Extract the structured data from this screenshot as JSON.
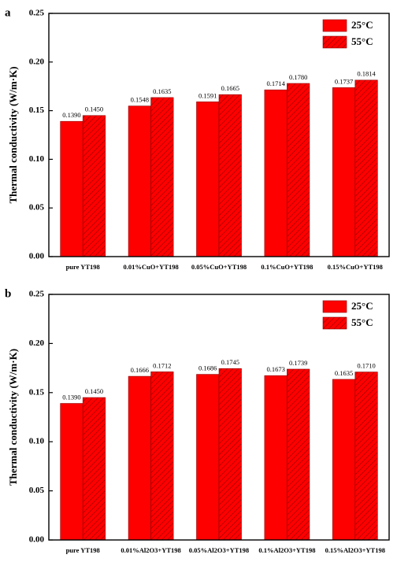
{
  "chart_data": [
    {
      "type": "bar",
      "panel_label": "a",
      "ylabel": "Thermal conductivity (W/m·K)",
      "categories": [
        "pure YT198",
        "0.01%CuO+YT198",
        "0.05%CuO+YT198",
        "0.1%CuO+YT198",
        "0.15%CuO+YT198"
      ],
      "series": [
        {
          "name": "25°C",
          "color": "#ff0000",
          "hatch": false,
          "values": [
            0.139,
            0.1548,
            0.1591,
            0.1714,
            0.1737
          ],
          "value_labels": [
            "0.1390",
            "0.1548",
            "0.1591",
            "0.1714",
            "0.1737"
          ]
        },
        {
          "name": "55°C",
          "color": "#ff0000",
          "hatch": true,
          "values": [
            0.145,
            0.1635,
            0.1665,
            0.178,
            0.1814
          ],
          "value_labels": [
            "0.1450",
            "0.1635",
            "0.1665",
            "0.1780",
            "0.1814"
          ]
        }
      ],
      "ylim": [
        0,
        0.25
      ],
      "yticks": [
        {
          "value": 0,
          "label": "0.00"
        },
        {
          "value": 0.05,
          "label": "0.05"
        },
        {
          "value": 0.1,
          "label": "0.10"
        },
        {
          "value": 0.15,
          "label": "0.15"
        },
        {
          "value": 0.2,
          "label": "0.20"
        },
        {
          "value": 0.25,
          "label": "0.25"
        }
      ],
      "legend": "upper right"
    },
    {
      "type": "bar",
      "panel_label": "b",
      "ylabel": "Thermal conductivity (W/m·K)",
      "categories": [
        "pure YT198",
        "0.01%Al2O3+YT198",
        "0.05%Al2O3+YT198",
        "0.1%Al2O3+YT198",
        "0.15%Al2O3+YT198"
      ],
      "series": [
        {
          "name": "25°C",
          "color": "#ff0000",
          "hatch": false,
          "values": [
            0.139,
            0.1666,
            0.1686,
            0.1673,
            0.1635
          ],
          "value_labels": [
            "0.1390",
            "0.1666",
            "0.1686",
            "0.1673",
            "0.1635"
          ]
        },
        {
          "name": "55°C",
          "color": "#ff0000",
          "hatch": true,
          "values": [
            0.145,
            0.1712,
            0.1745,
            0.1739,
            0.171
          ],
          "value_labels": [
            "0.1450",
            "0.1712",
            "0.1745",
            "0.1739",
            "0.1710"
          ]
        }
      ],
      "ylim": [
        0,
        0.25
      ],
      "yticks": [
        {
          "value": 0,
          "label": "0.00"
        },
        {
          "value": 0.05,
          "label": "0.05"
        },
        {
          "value": 0.1,
          "label": "0.10"
        },
        {
          "value": 0.15,
          "label": "0.15"
        },
        {
          "value": 0.2,
          "label": "0.20"
        },
        {
          "value": 0.25,
          "label": "0.25"
        }
      ],
      "legend": "upper right"
    }
  ]
}
